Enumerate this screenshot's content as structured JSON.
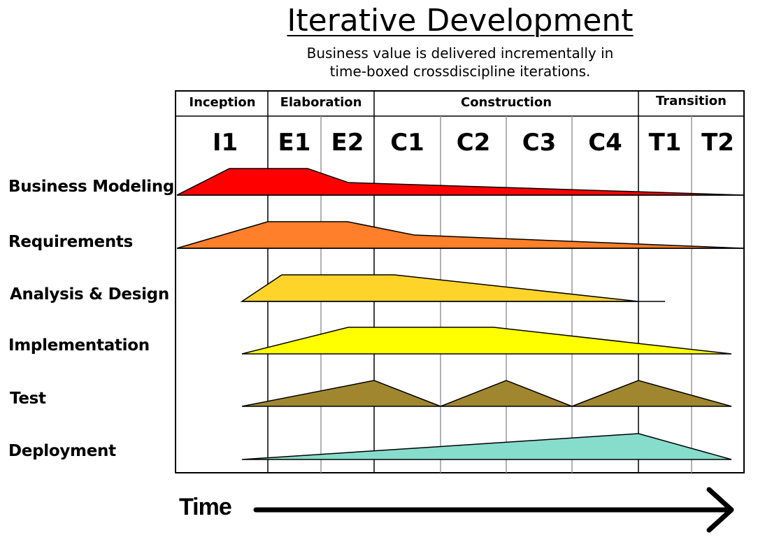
{
  "title": "Iterative Development",
  "subtitle": [
    "Business value is delivered incrementally in",
    "time-boxed crossdiscipline iterations."
  ],
  "phases": [
    "Inception",
    "Elaboration",
    "Construction",
    "Transition"
  ],
  "iterations": [
    "I1",
    "E1",
    "E2",
    "C1",
    "C2",
    "C3",
    "C4",
    "T1",
    "T2"
  ],
  "disciplines": [
    {
      "name": "Business Modeling",
      "color": "#ff0000"
    },
    {
      "name": "Requirements",
      "color": "#ff7f2a"
    },
    {
      "name": "Analysis & Design",
      "color": "#ffd42a"
    },
    {
      "name": "Implementation",
      "color": "#ffff00"
    },
    {
      "name": "Test",
      "color": "#a0872f"
    },
    {
      "name": "Deployment",
      "color": "#87ddcc"
    }
  ],
  "time_label": "Time"
}
